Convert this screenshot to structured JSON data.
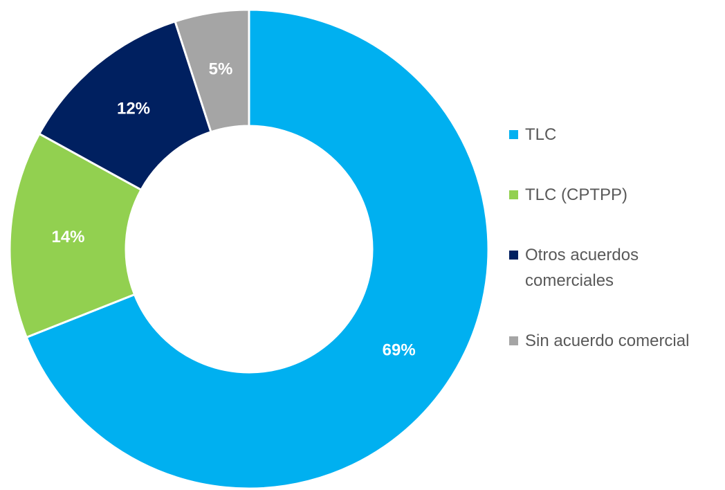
{
  "chart_data": {
    "type": "pie",
    "categories": [
      "TLC",
      "TLC (CPTPP)",
      "Otros acuerdos comerciales",
      "Sin acuerdo comercial"
    ],
    "values": [
      69,
      14,
      12,
      5
    ],
    "value_labels": [
      "69%",
      "14%",
      "12%",
      "5%"
    ],
    "colors": [
      "#00b0f0",
      "#92d050",
      "#002060",
      "#a5a5a5"
    ],
    "legend": "right"
  }
}
